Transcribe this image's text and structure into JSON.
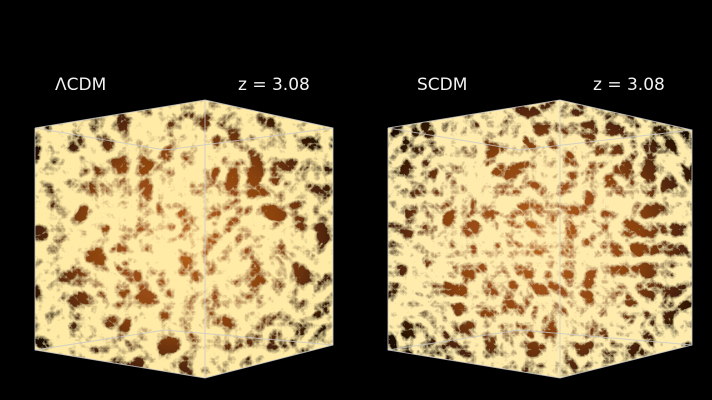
{
  "panels": [
    {
      "label": "ΛCDM",
      "redshift": "z = 3.08"
    },
    {
      "label": "SCDM",
      "redshift": "z = 3.08"
    }
  ]
}
